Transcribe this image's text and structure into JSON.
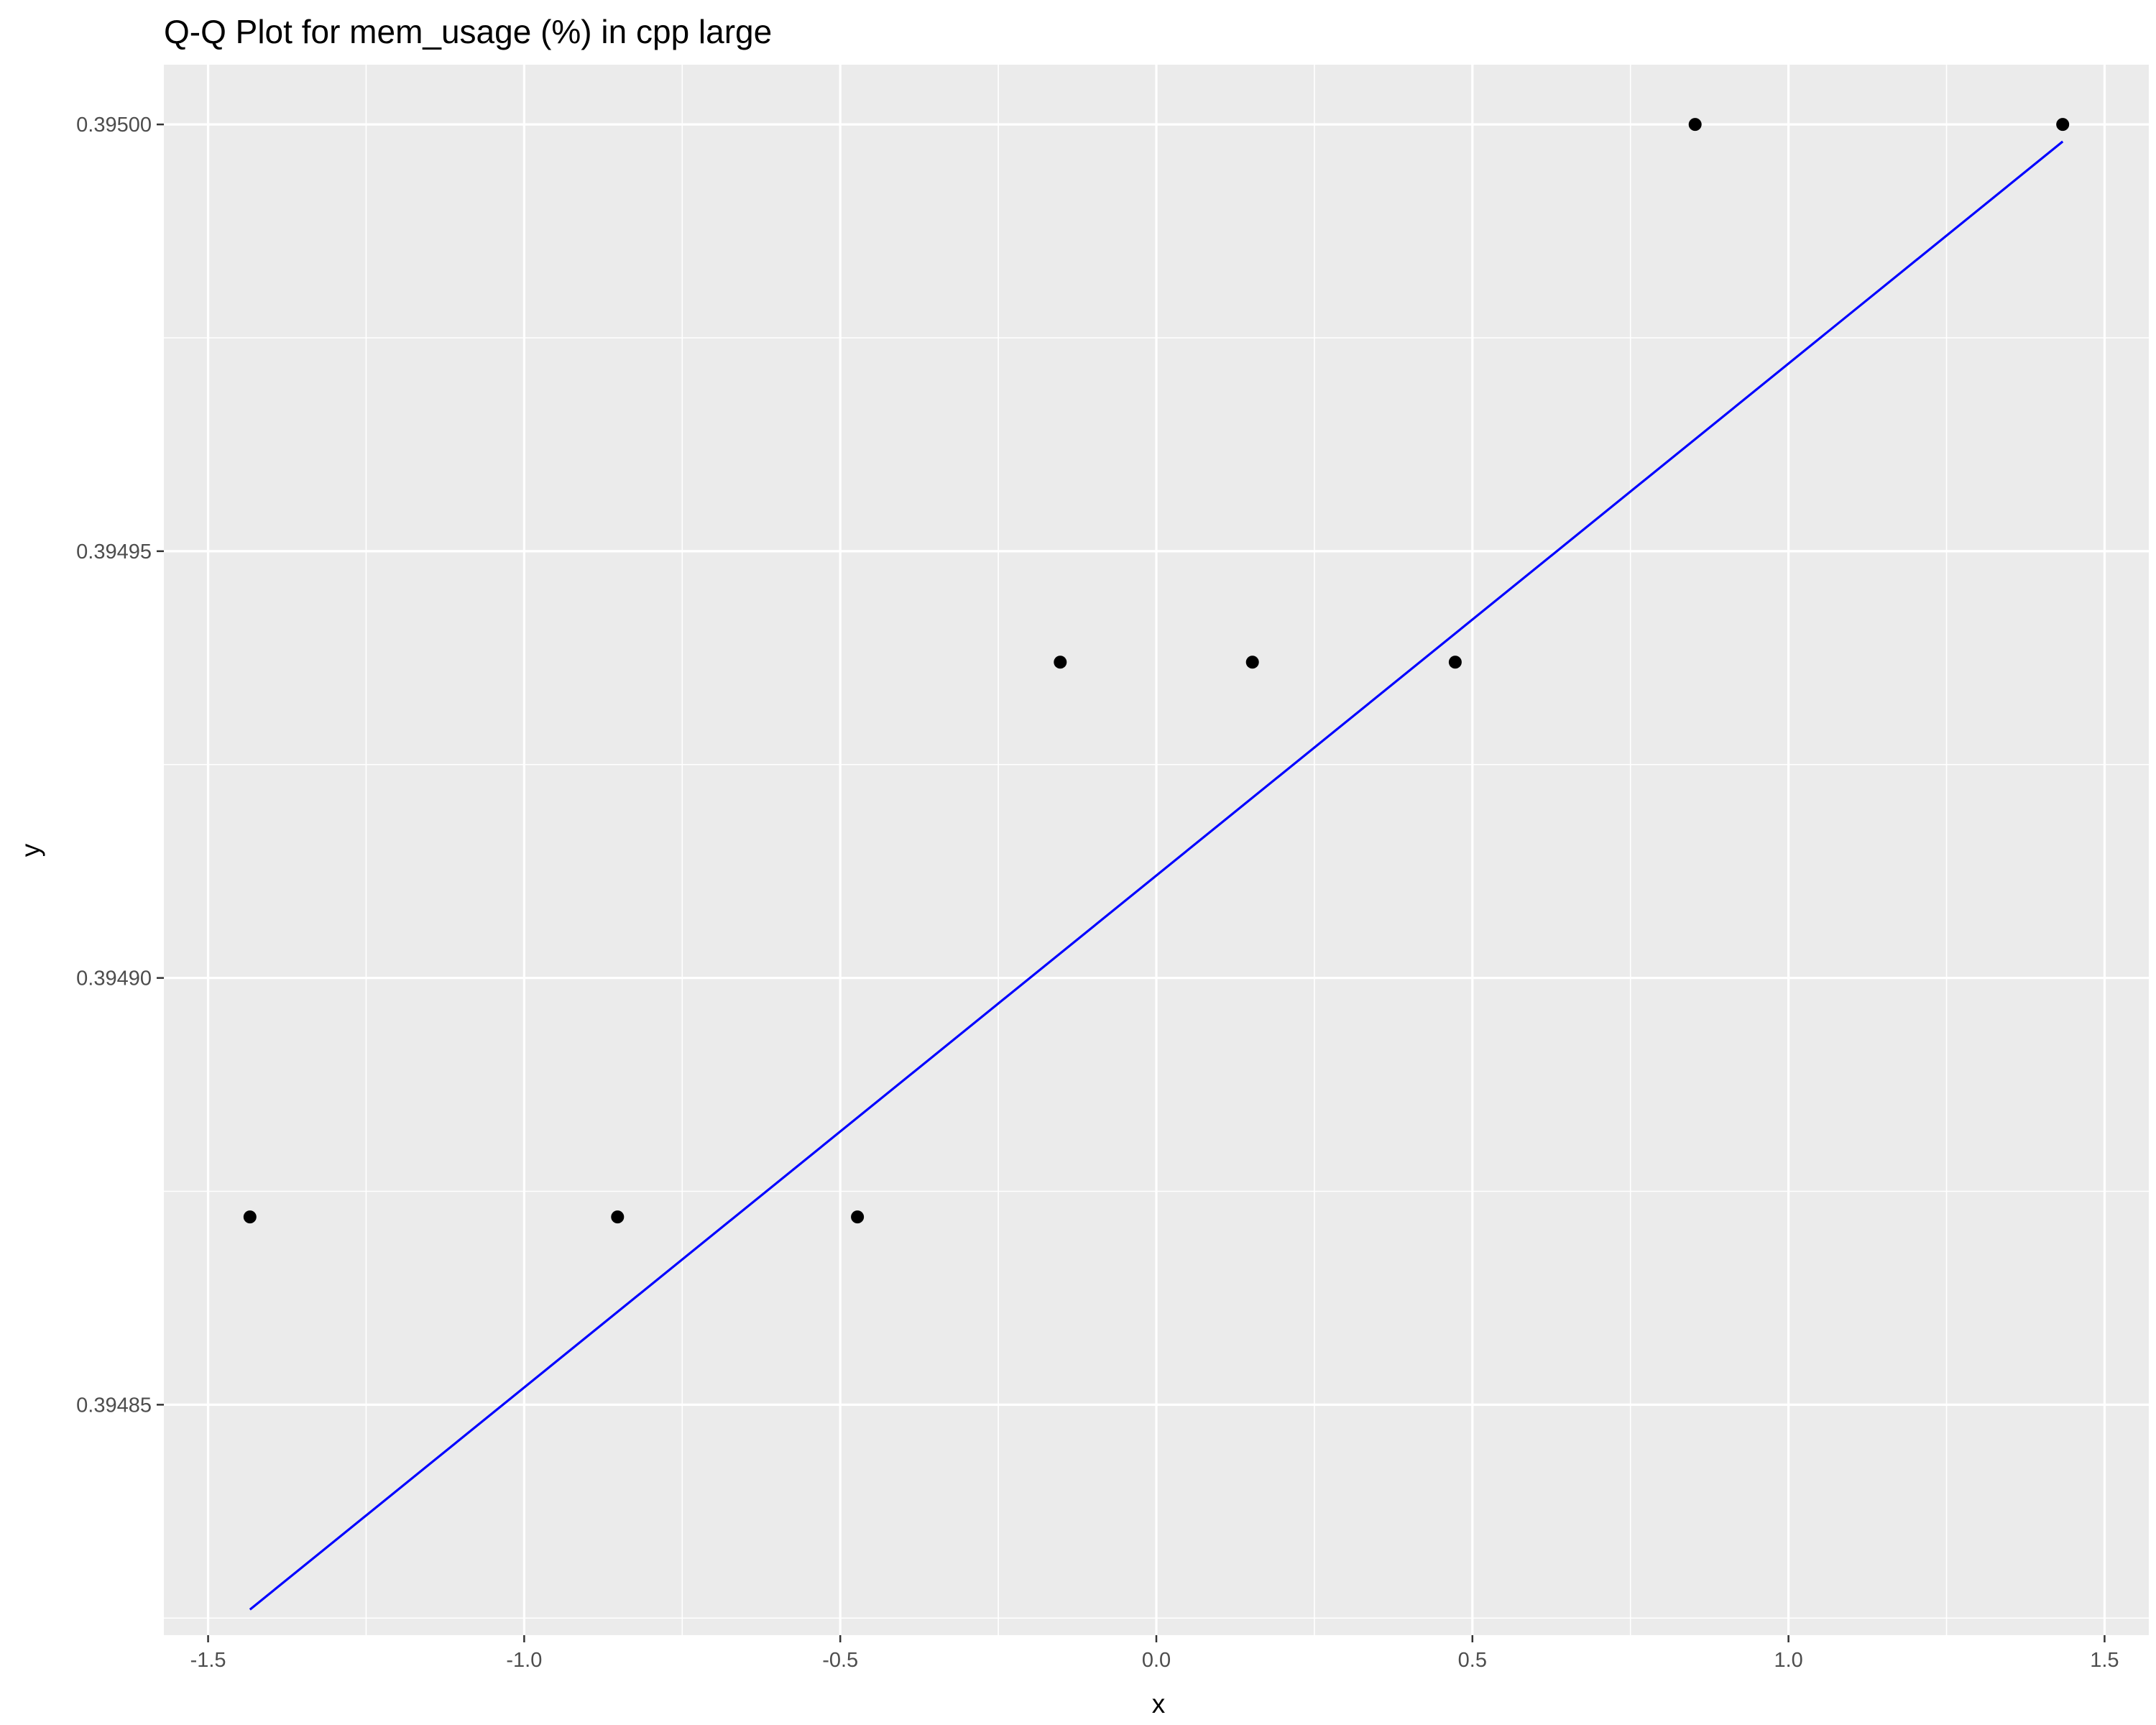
{
  "chart_data": {
    "type": "scatter",
    "title": "Q-Q Plot for mem_usage (%) in cpp large",
    "xlabel": "x",
    "ylabel": "y",
    "xlim": [
      -1.57,
      1.57
    ],
    "ylim": [
      0.394823,
      0.395007
    ],
    "grid": true,
    "panel_background": "#ebebeb",
    "x_ticks": [
      -1.5,
      -1.0,
      -0.5,
      0.0,
      0.5,
      1.0,
      1.5
    ],
    "x_tick_labels": [
      "-1.5",
      "-1.0",
      "-0.5",
      "0.0",
      "0.5",
      "1.0",
      "1.5"
    ],
    "y_ticks": [
      0.39485,
      0.3949,
      0.39495,
      0.395
    ],
    "y_tick_labels": [
      "0.39485",
      "0.39490",
      "0.39495",
      "0.39500"
    ],
    "points": {
      "color": "#000000",
      "x": [
        -1.4338,
        -0.8523,
        -0.4728,
        -0.152,
        0.152,
        0.4728,
        0.8523,
        1.4338
      ],
      "y": [
        0.394872,
        0.394872,
        0.394872,
        0.394937,
        0.394937,
        0.394937,
        0.395,
        0.395
      ]
    },
    "reference_line": {
      "color": "#0000ff",
      "x": [
        -1.4338,
        1.4338
      ],
      "y": [
        0.394826,
        0.394998
      ]
    }
  }
}
